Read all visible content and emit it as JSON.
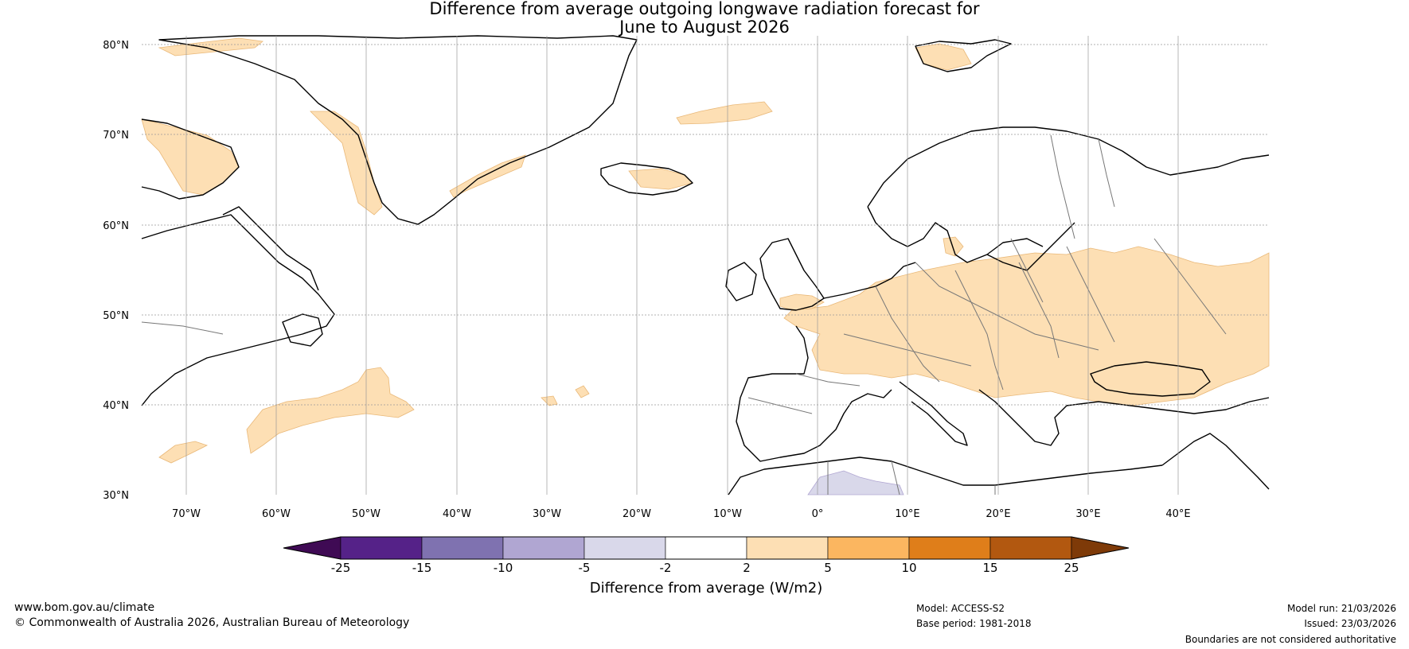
{
  "title": {
    "line1": "Difference from average outgoing longwave radiation forecast for",
    "line2": "June to August 2026"
  },
  "map": {
    "lat_labels": [
      "80°N",
      "70°N",
      "60°N",
      "50°N",
      "40°N",
      "30°N"
    ],
    "lon_labels": [
      "70°W",
      "60°W",
      "50°W",
      "40°W",
      "30°W",
      "20°W",
      "10°W",
      "0°",
      "10°E",
      "20°E",
      "30°E",
      "40°E"
    ],
    "extent": {
      "lon": [
        -75,
        50
      ],
      "lat": [
        30,
        81
      ]
    }
  },
  "legend": {
    "label": "Difference from average (W/m2)",
    "ticks": [
      "-25",
      "-15",
      "-10",
      "-5",
      "-2",
      "2",
      "5",
      "10",
      "15",
      "25"
    ],
    "colors": [
      "#3f0a54",
      "#552288",
      "#7f72b0",
      "#b0a6d2",
      "#d9d8ea",
      "#ffffff",
      "#fddfb4",
      "#fbb660",
      "#df7e1a",
      "#b25810",
      "#7e3a08"
    ]
  },
  "footer": {
    "website": "www.bom.gov.au/climate",
    "copyright": "© Commonwealth of Australia 2026, Australian Bureau of Meteorology",
    "model": "Model: ACCESS-S2",
    "base_period": "Base period: 1981-2018",
    "model_run": "Model run: 21/03/2026",
    "issued": "Issued: 23/03/2026",
    "disclaimer": "Boundaries are not considered authoritative"
  }
}
